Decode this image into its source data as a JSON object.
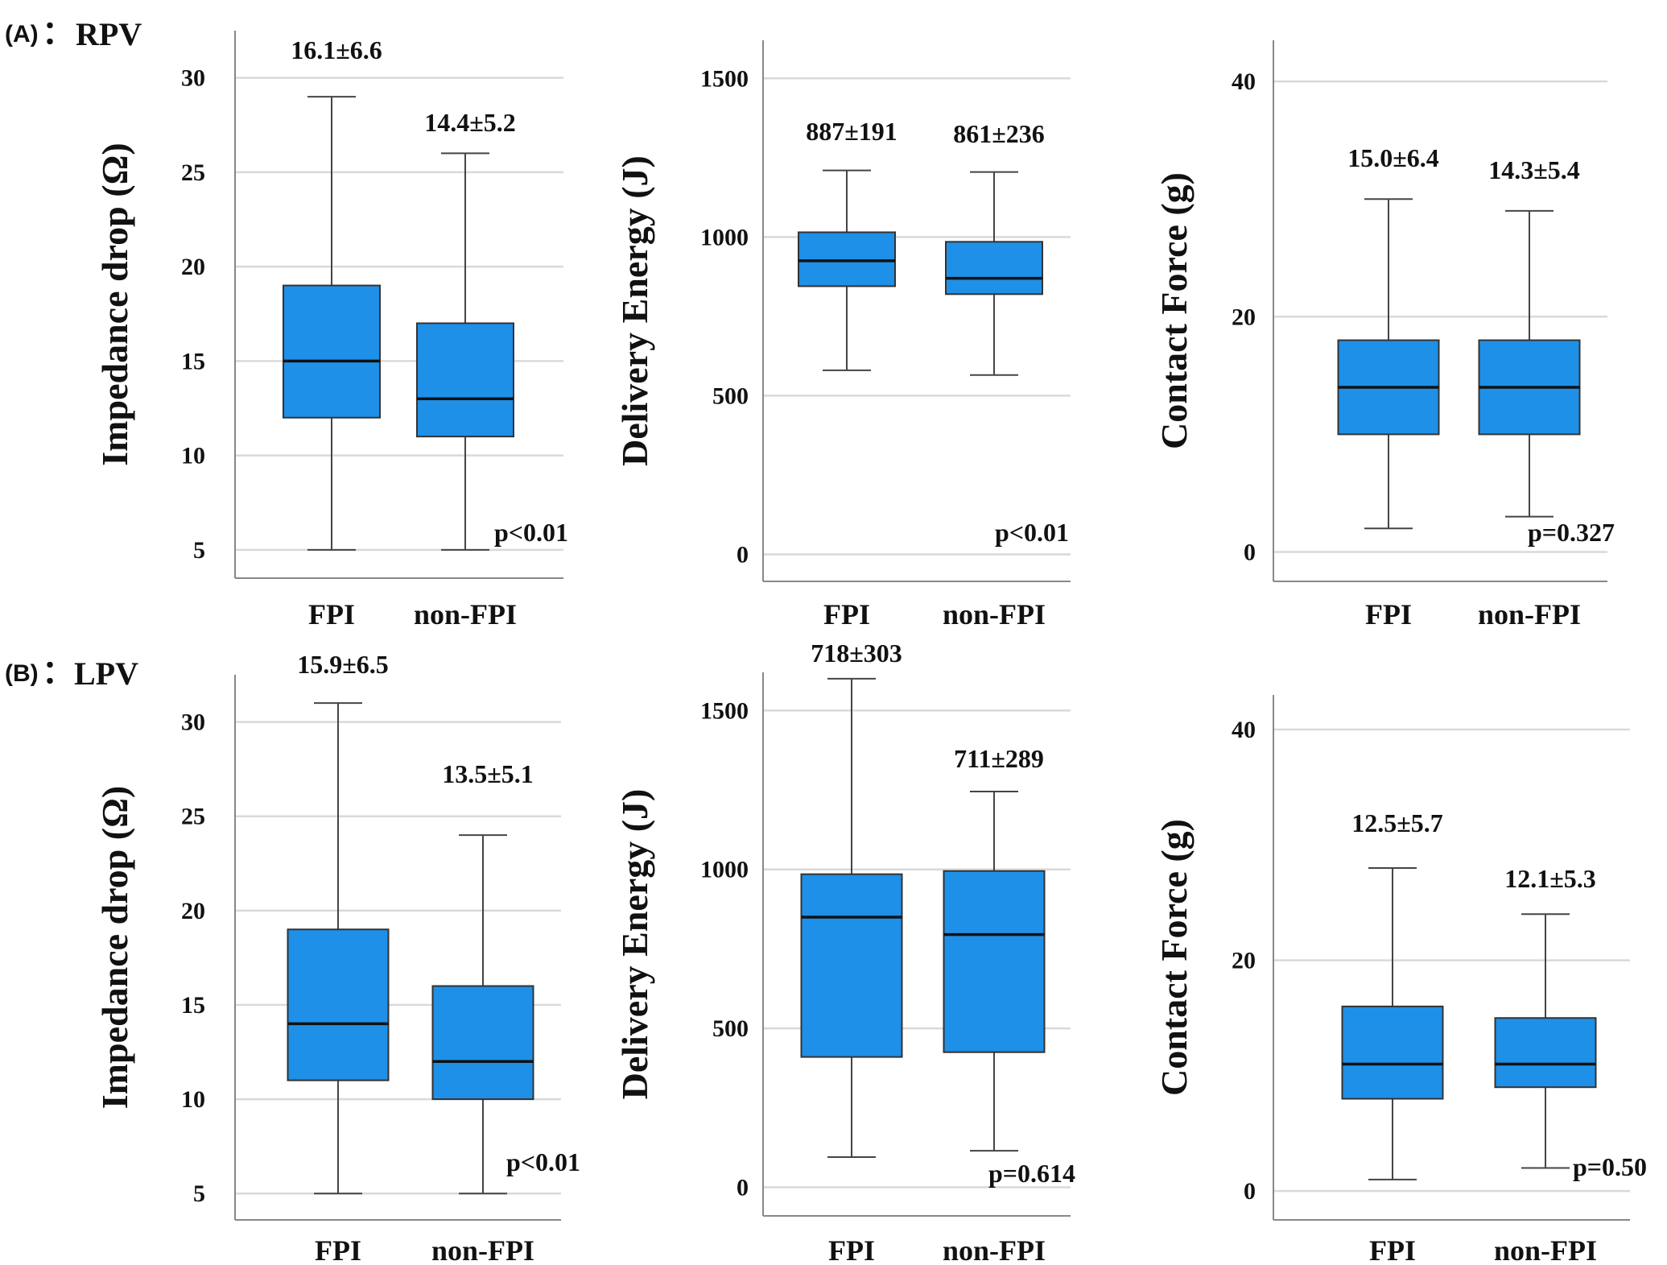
{
  "colors": {
    "box": "#1E90E8",
    "box_stroke": "#333333",
    "grid": "#d9d9d9",
    "axis": "#888888",
    "whisker": "#444444",
    "median": "#111111"
  },
  "panels": [
    {
      "letter": "(A)",
      "sep": "：",
      "name": "RPV"
    },
    {
      "letter": "(B)",
      "sep": "：",
      "name": "LPV"
    }
  ],
  "chart_data": [
    {
      "type": "box",
      "panel": "RPV",
      "ylabel": "Impedance drop (Ω)",
      "categories": [
        "FPI",
        "non-FPI"
      ],
      "ylim": [
        3.5,
        32.5
      ],
      "yticks": [
        5,
        10,
        15,
        20,
        25,
        30
      ],
      "boxes": [
        {
          "min": 5,
          "q1": 12,
          "median": 15,
          "q3": 19,
          "max": 29,
          "label": "16.1±6.6"
        },
        {
          "min": 5,
          "q1": 11,
          "median": 13,
          "q3": 17,
          "max": 26,
          "label": "14.4±5.2"
        }
      ],
      "pvalue": "p<0.01"
    },
    {
      "type": "box",
      "panel": "RPV",
      "ylabel": "Delivery Energy (J)",
      "categories": [
        "FPI",
        "non-FPI"
      ],
      "ylim": [
        -85,
        1620
      ],
      "yticks": [
        0,
        500,
        1000,
        1500
      ],
      "boxes": [
        {
          "min": 580,
          "q1": 845,
          "median": 925,
          "q3": 1015,
          "max": 1210,
          "label": "887±191"
        },
        {
          "min": 565,
          "q1": 820,
          "median": 870,
          "q3": 985,
          "max": 1205,
          "label": "861±236"
        }
      ],
      "pvalue": "p<0.01"
    },
    {
      "type": "box",
      "panel": "RPV",
      "ylabel": "Contact Force (g)",
      "categories": [
        "FPI",
        "non-FPI"
      ],
      "ylim": [
        -2.5,
        43.5
      ],
      "yticks": [
        0,
        20,
        40
      ],
      "boxes": [
        {
          "min": 2,
          "q1": 10,
          "median": 14,
          "q3": 18,
          "max": 30,
          "label": "15.0±6.4"
        },
        {
          "min": 3,
          "q1": 10,
          "median": 14,
          "q3": 18,
          "max": 29,
          "label": "14.3±5.4"
        }
      ],
      "pvalue": "p=0.327"
    },
    {
      "type": "box",
      "panel": "LPV",
      "ylabel": "Impedance drop (Ω)",
      "categories": [
        "FPI",
        "non-FPI"
      ],
      "ylim": [
        3.6,
        32.5
      ],
      "yticks": [
        5,
        10,
        15,
        20,
        25,
        30
      ],
      "boxes": [
        {
          "min": 5,
          "q1": 11,
          "median": 14,
          "q3": 19,
          "max": 31,
          "label": "15.9±6.5"
        },
        {
          "min": 5,
          "q1": 10,
          "median": 12,
          "q3": 16,
          "max": 24,
          "label": "13.5±5.1"
        }
      ],
      "pvalue": "p<0.01"
    },
    {
      "type": "box",
      "panel": "LPV",
      "ylabel": "Delivery Energy (J)",
      "categories": [
        "FPI",
        "non-FPI"
      ],
      "ylim": [
        -90,
        1620
      ],
      "yticks": [
        0,
        500,
        1000,
        1500
      ],
      "boxes": [
        {
          "min": 95,
          "q1": 410,
          "median": 850,
          "q3": 985,
          "max": 1600,
          "label": "718±303"
        },
        {
          "min": 115,
          "q1": 425,
          "median": 795,
          "q3": 995,
          "max": 1245,
          "label": "711±289"
        }
      ],
      "pvalue": "p=0.614"
    },
    {
      "type": "box",
      "panel": "LPV",
      "ylabel": "Contact Force (g)",
      "categories": [
        "FPI",
        "non-FPI"
      ],
      "ylim": [
        -2.5,
        43
      ],
      "yticks": [
        0,
        20,
        40
      ],
      "boxes": [
        {
          "min": 1,
          "q1": 8,
          "median": 11,
          "q3": 16,
          "max": 28,
          "label": "12.5±5.7"
        },
        {
          "min": 2,
          "q1": 9,
          "median": 11,
          "q3": 15,
          "max": 24,
          "label": "12.1±5.3"
        }
      ],
      "pvalue": "p=0.50"
    }
  ]
}
